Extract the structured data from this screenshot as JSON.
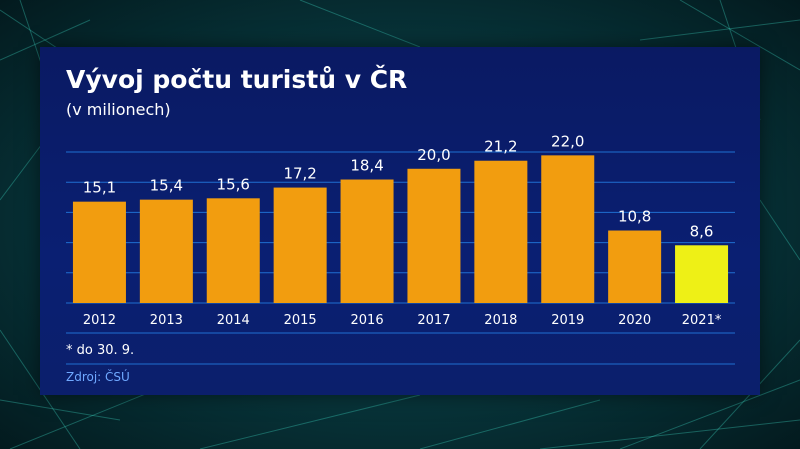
{
  "colors": {
    "bar": "#f29d0f",
    "bar_highlight": "#eef016",
    "panel": "#0a1c6a",
    "gridline": "#1f6fd1",
    "text": "#ffffff",
    "source_text": "#6fa8ff"
  },
  "chart_data": {
    "type": "bar",
    "title": "Vývoj počtu turistů v ČR",
    "subtitle": "(v milionech)",
    "categories": [
      "2012",
      "2013",
      "2014",
      "2015",
      "2016",
      "2017",
      "2018",
      "2019",
      "2020",
      "2021*"
    ],
    "values": [
      15.1,
      15.4,
      15.6,
      17.2,
      18.4,
      20.0,
      21.2,
      22.0,
      10.8,
      8.6
    ],
    "value_labels": [
      "15,1",
      "15,4",
      "15,6",
      "17,2",
      "18,4",
      "20,0",
      "21,2",
      "22,0",
      "10,8",
      "8,6"
    ],
    "highlight_index": 9,
    "ylim": [
      0,
      22.5
    ],
    "grid": true,
    "xlabel": "",
    "ylabel": ""
  },
  "footnote": "* do 30. 9.",
  "source": "Zdroj: ČSÚ"
}
